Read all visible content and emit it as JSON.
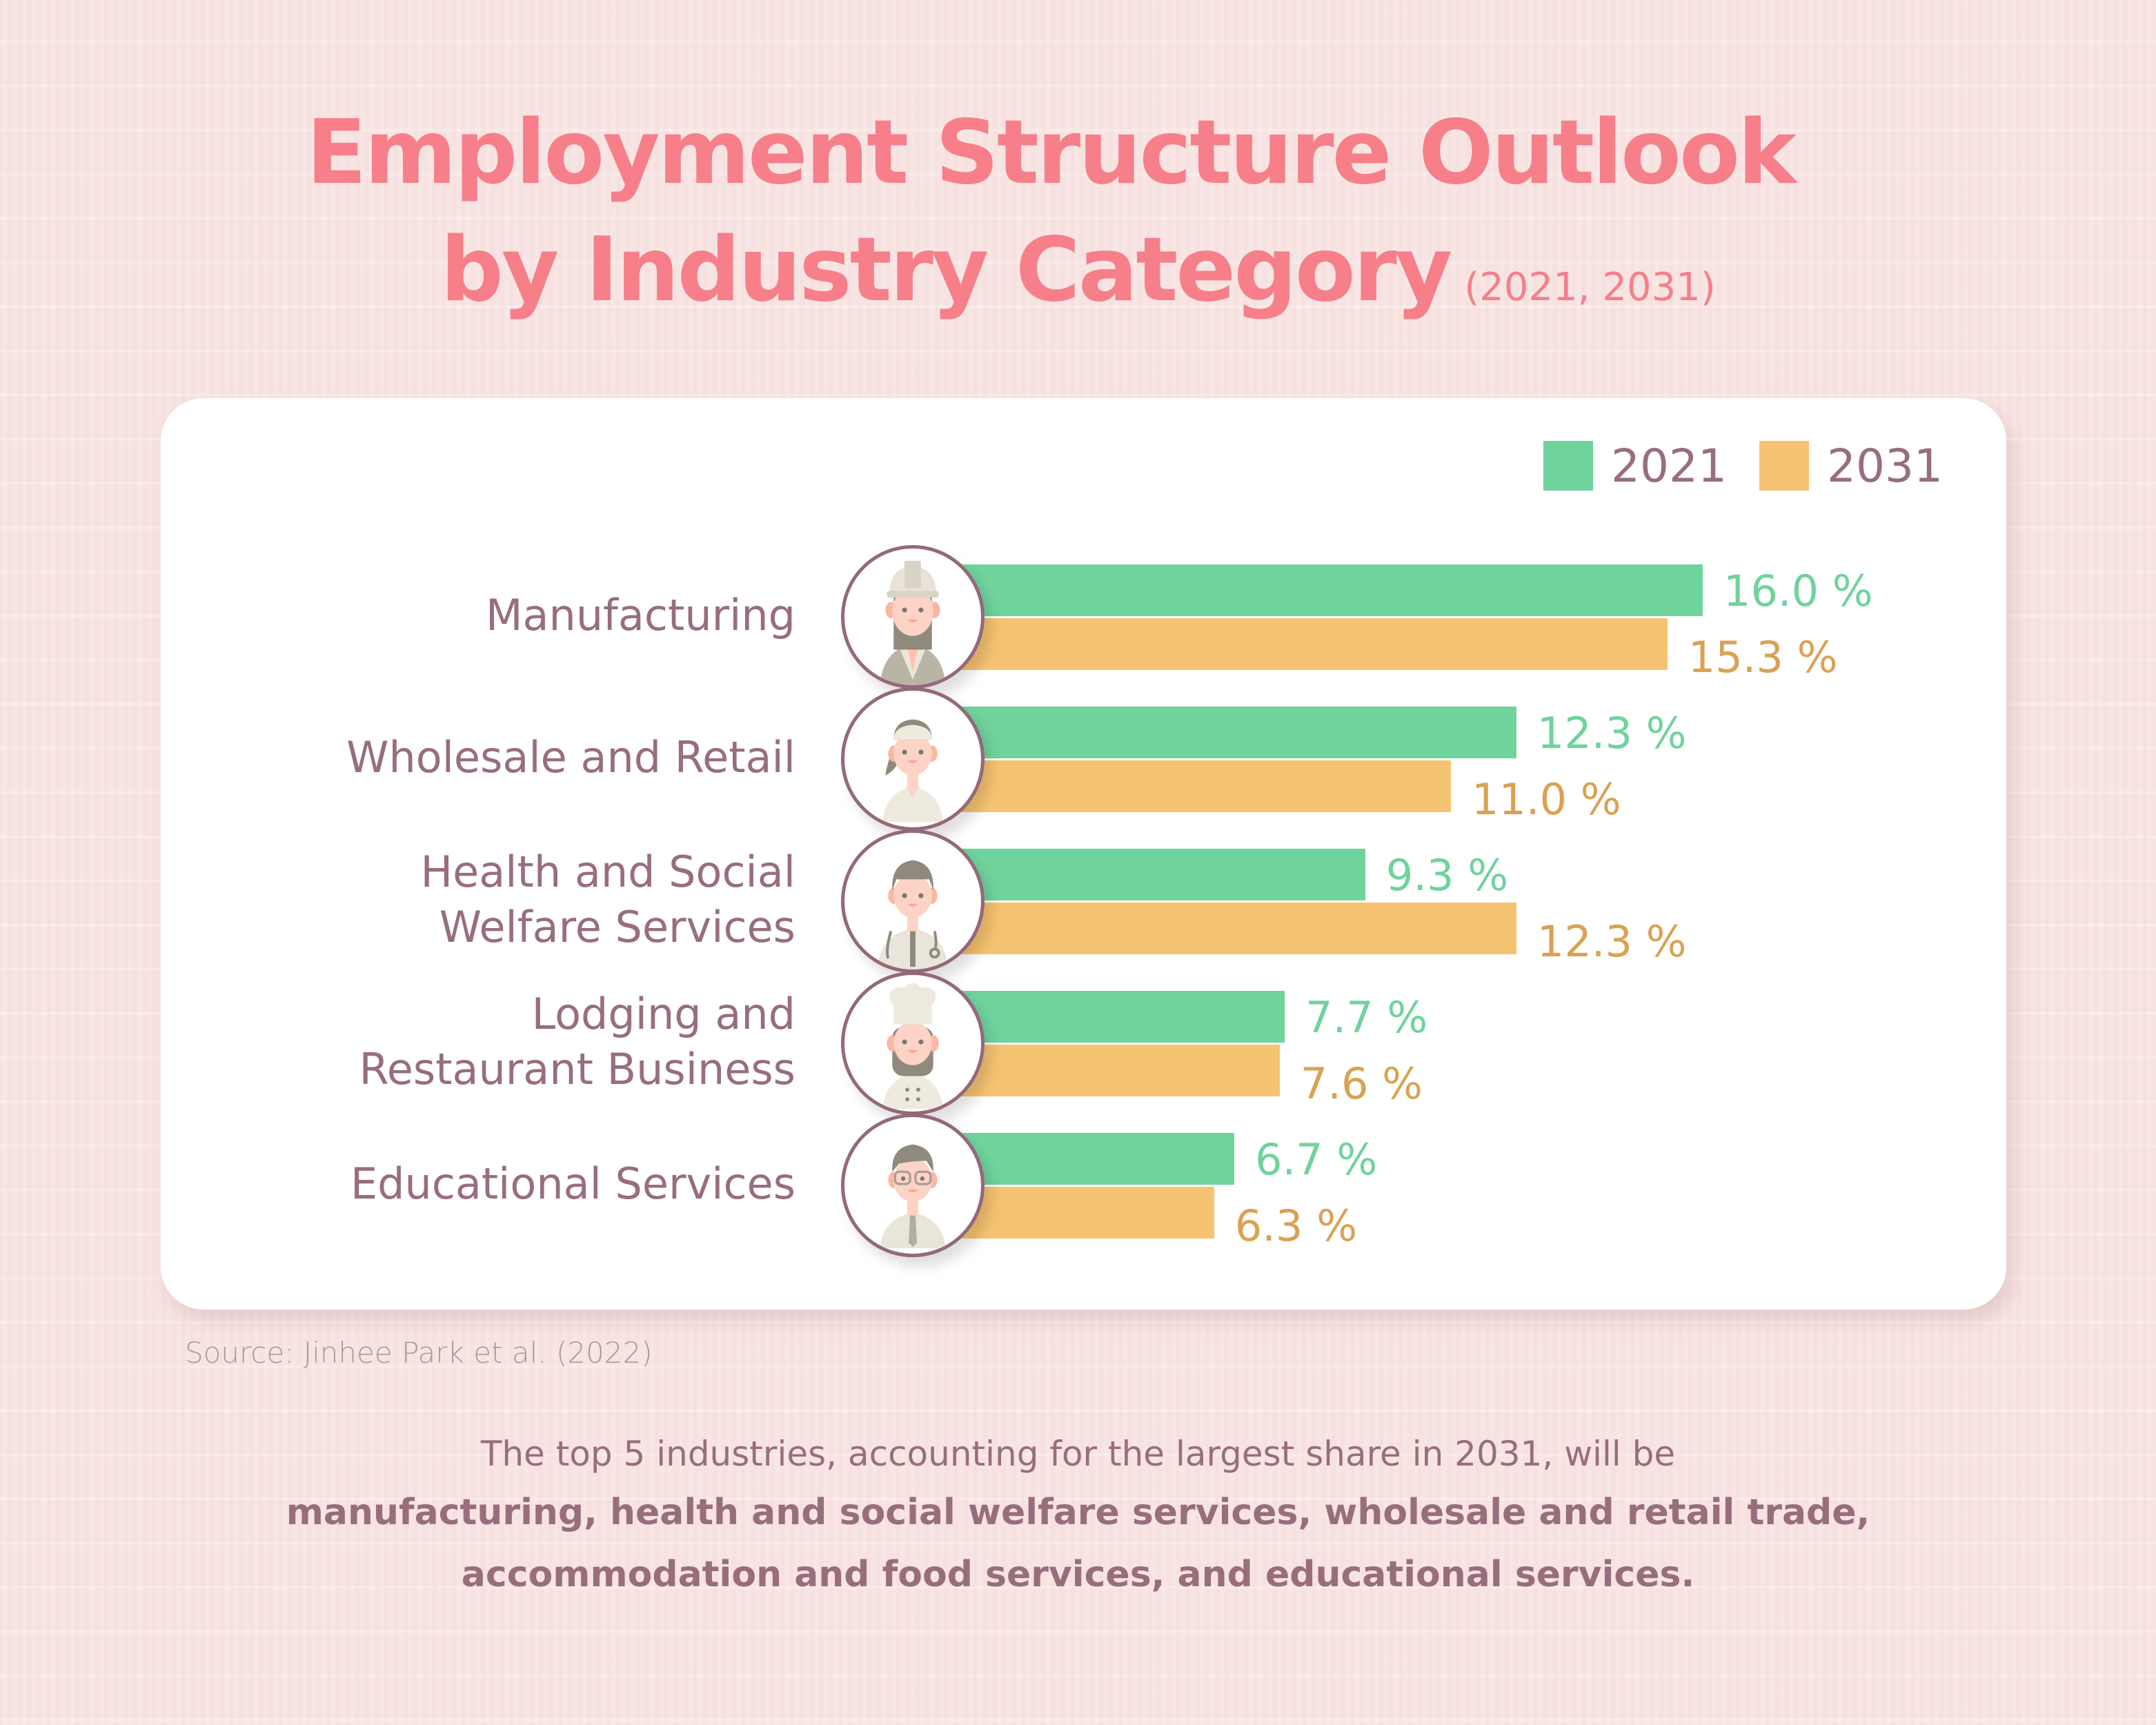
{
  "title": {
    "line1": "Employment Structure Outlook",
    "line2": "by Industry Category",
    "subtitle": "(2021, 2031)"
  },
  "legend": [
    {
      "label": "2021",
      "color": "#6fd39c"
    },
    {
      "label": "2031",
      "color": "#f6c372"
    }
  ],
  "colors": {
    "bar_2021": "#6fd39c",
    "bar_2031": "#f6c372",
    "value_2021": "#6fd39c",
    "value_2031": "#d9a253",
    "label": "#986e7c",
    "title": "#f67f8a",
    "avatar_border": "#94687b"
  },
  "chart_data": {
    "type": "bar",
    "orientation": "horizontal",
    "title": "Employment Structure Outlook by Industry Category (2021, 2031)",
    "xlabel": "",
    "ylabel": "",
    "unit": "%",
    "categories": [
      "Manufacturing",
      "Wholesale and Retail",
      "Health and Social Welfare Services",
      "Lodging and Restaurant Business",
      "Educational Services"
    ],
    "category_lines": [
      [
        "Manufacturing"
      ],
      [
        "Wholesale and Retail"
      ],
      [
        "Health and Social",
        "Welfare Services"
      ],
      [
        "Lodging and",
        "Restaurant Business"
      ],
      [
        "Educational Services"
      ]
    ],
    "category_icons": [
      "construction-worker-icon",
      "retail-worker-icon",
      "doctor-icon",
      "chef-icon",
      "teacher-icon"
    ],
    "series": [
      {
        "name": "2021",
        "values": [
          16.0,
          12.3,
          9.3,
          7.7,
          6.7
        ],
        "labels": [
          "16.0 %",
          "12.3 %",
          "9.3 %",
          "7.7 %",
          "6.7 %"
        ]
      },
      {
        "name": "2031",
        "values": [
          15.3,
          11.0,
          12.3,
          7.6,
          6.3
        ],
        "labels": [
          "15.3 %",
          "11.0 %",
          "12.3 %",
          "7.6 %",
          "6.3 %"
        ]
      }
    ],
    "xlim": [
      0,
      16.0
    ],
    "grid": false,
    "legend_position": "top-right"
  },
  "source": "Source: Jinhee Park et al. (2022)",
  "footer": {
    "line1": "The top 5 industries, accounting for the largest share in 2031, will be",
    "line2": "manufacturing, health and social welfare services, wholesale and retail trade,",
    "line3": "accommodation and food services, and educational services."
  }
}
